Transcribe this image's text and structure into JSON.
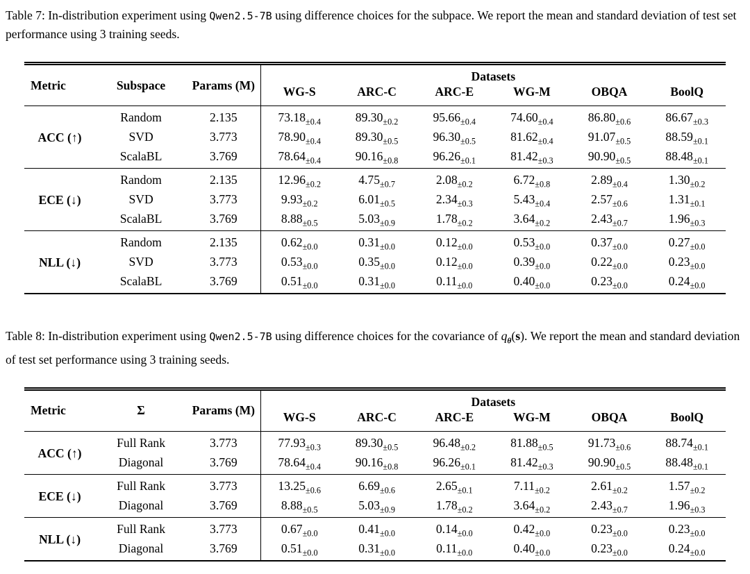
{
  "page": {
    "background": "#ffffff",
    "text_color": "#000000"
  },
  "tables": [
    {
      "name": "table-7",
      "caption_parts": [
        {
          "t": "text",
          "v": "Table 7: In-distribution experiment using "
        },
        {
          "t": "code",
          "v": "Qwen2.5-7B"
        },
        {
          "t": "text",
          "v": " using difference choices for the subpace. We report the mean and standard deviation of test set performance using 3 training seeds."
        }
      ],
      "header": {
        "metric": "Metric",
        "variant": "Subspace",
        "params": "Params (M)",
        "datasets": "Datasets",
        "dataset_columns": [
          "WG-S",
          "ARC-C",
          "ARC-E",
          "WG-M",
          "OBQA",
          "BoolQ"
        ]
      },
      "groups": [
        {
          "metric": "ACC (↑)",
          "rows": [
            {
              "variant": "Random",
              "params": "2.135",
              "values": [
                {
                  "m": "73.18",
                  "s": "±0.4"
                },
                {
                  "m": "89.30",
                  "s": "±0.2"
                },
                {
                  "m": "95.66",
                  "s": "±0.4"
                },
                {
                  "m": "74.60",
                  "s": "±0.4"
                },
                {
                  "m": "86.80",
                  "s": "±0.6"
                },
                {
                  "m": "86.67",
                  "s": "±0.3"
                }
              ]
            },
            {
              "variant": "SVD",
              "params": "3.773",
              "values": [
                {
                  "m": "78.90",
                  "s": "±0.4"
                },
                {
                  "m": "89.30",
                  "s": "±0.5"
                },
                {
                  "m": "96.30",
                  "s": "±0.5"
                },
                {
                  "m": "81.62",
                  "s": "±0.4"
                },
                {
                  "m": "91.07",
                  "s": "±0.5"
                },
                {
                  "m": "88.59",
                  "s": "±0.1"
                }
              ]
            },
            {
              "variant": "ScalaBL",
              "params": "3.769",
              "values": [
                {
                  "m": "78.64",
                  "s": "±0.4"
                },
                {
                  "m": "90.16",
                  "s": "±0.8"
                },
                {
                  "m": "96.26",
                  "s": "±0.1"
                },
                {
                  "m": "81.42",
                  "s": "±0.3"
                },
                {
                  "m": "90.90",
                  "s": "±0.5"
                },
                {
                  "m": "88.48",
                  "s": "±0.1"
                }
              ]
            }
          ]
        },
        {
          "metric": "ECE (↓)",
          "rows": [
            {
              "variant": "Random",
              "params": "2.135",
              "values": [
                {
                  "m": "12.96",
                  "s": "±0.2"
                },
                {
                  "m": "4.75",
                  "s": "±0.7"
                },
                {
                  "m": "2.08",
                  "s": "±0.2"
                },
                {
                  "m": "6.72",
                  "s": "±0.8"
                },
                {
                  "m": "2.89",
                  "s": "±0.4"
                },
                {
                  "m": "1.30",
                  "s": "±0.2"
                }
              ]
            },
            {
              "variant": "SVD",
              "params": "3.773",
              "values": [
                {
                  "m": "9.93",
                  "s": "±0.2"
                },
                {
                  "m": "6.01",
                  "s": "±0.5"
                },
                {
                  "m": "2.34",
                  "s": "±0.3"
                },
                {
                  "m": "5.43",
                  "s": "±0.4"
                },
                {
                  "m": "2.57",
                  "s": "±0.6"
                },
                {
                  "m": "1.31",
                  "s": "±0.1"
                }
              ]
            },
            {
              "variant": "ScalaBL",
              "params": "3.769",
              "values": [
                {
                  "m": "8.88",
                  "s": "±0.5"
                },
                {
                  "m": "5.03",
                  "s": "±0.9"
                },
                {
                  "m": "1.78",
                  "s": "±0.2"
                },
                {
                  "m": "3.64",
                  "s": "±0.2"
                },
                {
                  "m": "2.43",
                  "s": "±0.7"
                },
                {
                  "m": "1.96",
                  "s": "±0.3"
                }
              ]
            }
          ]
        },
        {
          "metric": "NLL (↓)",
          "rows": [
            {
              "variant": "Random",
              "params": "2.135",
              "values": [
                {
                  "m": "0.62",
                  "s": "±0.0"
                },
                {
                  "m": "0.31",
                  "s": "±0.0"
                },
                {
                  "m": "0.12",
                  "s": "±0.0"
                },
                {
                  "m": "0.53",
                  "s": "±0.0"
                },
                {
                  "m": "0.37",
                  "s": "±0.0"
                },
                {
                  "m": "0.27",
                  "s": "±0.0"
                }
              ]
            },
            {
              "variant": "SVD",
              "params": "3.773",
              "values": [
                {
                  "m": "0.53",
                  "s": "±0.0"
                },
                {
                  "m": "0.35",
                  "s": "±0.0"
                },
                {
                  "m": "0.12",
                  "s": "±0.0"
                },
                {
                  "m": "0.39",
                  "s": "±0.0"
                },
                {
                  "m": "0.22",
                  "s": "±0.0"
                },
                {
                  "m": "0.23",
                  "s": "±0.0"
                }
              ]
            },
            {
              "variant": "ScalaBL",
              "params": "3.769",
              "values": [
                {
                  "m": "0.51",
                  "s": "±0.0"
                },
                {
                  "m": "0.31",
                  "s": "±0.0"
                },
                {
                  "m": "0.11",
                  "s": "±0.0"
                },
                {
                  "m": "0.40",
                  "s": "±0.0"
                },
                {
                  "m": "0.23",
                  "s": "±0.0"
                },
                {
                  "m": "0.24",
                  "s": "±0.0"
                }
              ]
            }
          ]
        }
      ]
    },
    {
      "name": "table-8",
      "caption_parts": [
        {
          "t": "text",
          "v": "Table 8: In-distribution experiment using "
        },
        {
          "t": "code",
          "v": "Qwen2.5-7B"
        },
        {
          "t": "text",
          "v": " using difference choices for the covariance of "
        },
        {
          "t": "var",
          "v": "q"
        },
        {
          "t": "sub",
          "v": "θ"
        },
        {
          "t": "paren",
          "v": "("
        },
        {
          "t": "bold",
          "v": "s"
        },
        {
          "t": "paren",
          "v": ")"
        },
        {
          "t": "text",
          "v": ". We report the mean and standard deviation of test set performance using 3 training seeds."
        }
      ],
      "header": {
        "metric": "Metric",
        "variant": "Σ",
        "params": "Params (M)",
        "datasets": "Datasets",
        "dataset_columns": [
          "WG-S",
          "ARC-C",
          "ARC-E",
          "WG-M",
          "OBQA",
          "BoolQ"
        ]
      },
      "groups": [
        {
          "metric": "ACC (↑)",
          "rows": [
            {
              "variant": "Full Rank",
              "params": "3.773",
              "values": [
                {
                  "m": "77.93",
                  "s": "±0.3"
                },
                {
                  "m": "89.30",
                  "s": "±0.5"
                },
                {
                  "m": "96.48",
                  "s": "±0.2"
                },
                {
                  "m": "81.88",
                  "s": "±0.5"
                },
                {
                  "m": "91.73",
                  "s": "±0.6"
                },
                {
                  "m": "88.74",
                  "s": "±0.1"
                }
              ]
            },
            {
              "variant": "Diagonal",
              "params": "3.769",
              "values": [
                {
                  "m": "78.64",
                  "s": "±0.4"
                },
                {
                  "m": "90.16",
                  "s": "±0.8"
                },
                {
                  "m": "96.26",
                  "s": "±0.1"
                },
                {
                  "m": "81.42",
                  "s": "±0.3"
                },
                {
                  "m": "90.90",
                  "s": "±0.5"
                },
                {
                  "m": "88.48",
                  "s": "±0.1"
                }
              ]
            }
          ]
        },
        {
          "metric": "ECE (↓)",
          "rows": [
            {
              "variant": "Full Rank",
              "params": "3.773",
              "values": [
                {
                  "m": "13.25",
                  "s": "±0.6"
                },
                {
                  "m": "6.69",
                  "s": "±0.6"
                },
                {
                  "m": "2.65",
                  "s": "±0.1"
                },
                {
                  "m": "7.11",
                  "s": "±0.2"
                },
                {
                  "m": "2.61",
                  "s": "±0.2"
                },
                {
                  "m": "1.57",
                  "s": "±0.2"
                }
              ]
            },
            {
              "variant": "Diagonal",
              "params": "3.769",
              "values": [
                {
                  "m": "8.88",
                  "s": "±0.5"
                },
                {
                  "m": "5.03",
                  "s": "±0.9"
                },
                {
                  "m": "1.78",
                  "s": "±0.2"
                },
                {
                  "m": "3.64",
                  "s": "±0.2"
                },
                {
                  "m": "2.43",
                  "s": "±0.7"
                },
                {
                  "m": "1.96",
                  "s": "±0.3"
                }
              ]
            }
          ]
        },
        {
          "metric": "NLL (↓)",
          "rows": [
            {
              "variant": "Full Rank",
              "params": "3.773",
              "values": [
                {
                  "m": "0.67",
                  "s": "±0.0"
                },
                {
                  "m": "0.41",
                  "s": "±0.0"
                },
                {
                  "m": "0.14",
                  "s": "±0.0"
                },
                {
                  "m": "0.42",
                  "s": "±0.0"
                },
                {
                  "m": "0.23",
                  "s": "±0.0"
                },
                {
                  "m": "0.23",
                  "s": "±0.0"
                }
              ]
            },
            {
              "variant": "Diagonal",
              "params": "3.769",
              "values": [
                {
                  "m": "0.51",
                  "s": "±0.0"
                },
                {
                  "m": "0.31",
                  "s": "±0.0"
                },
                {
                  "m": "0.11",
                  "s": "±0.0"
                },
                {
                  "m": "0.40",
                  "s": "±0.0"
                },
                {
                  "m": "0.23",
                  "s": "±0.0"
                },
                {
                  "m": "0.24",
                  "s": "±0.0"
                }
              ]
            }
          ]
        }
      ]
    }
  ]
}
